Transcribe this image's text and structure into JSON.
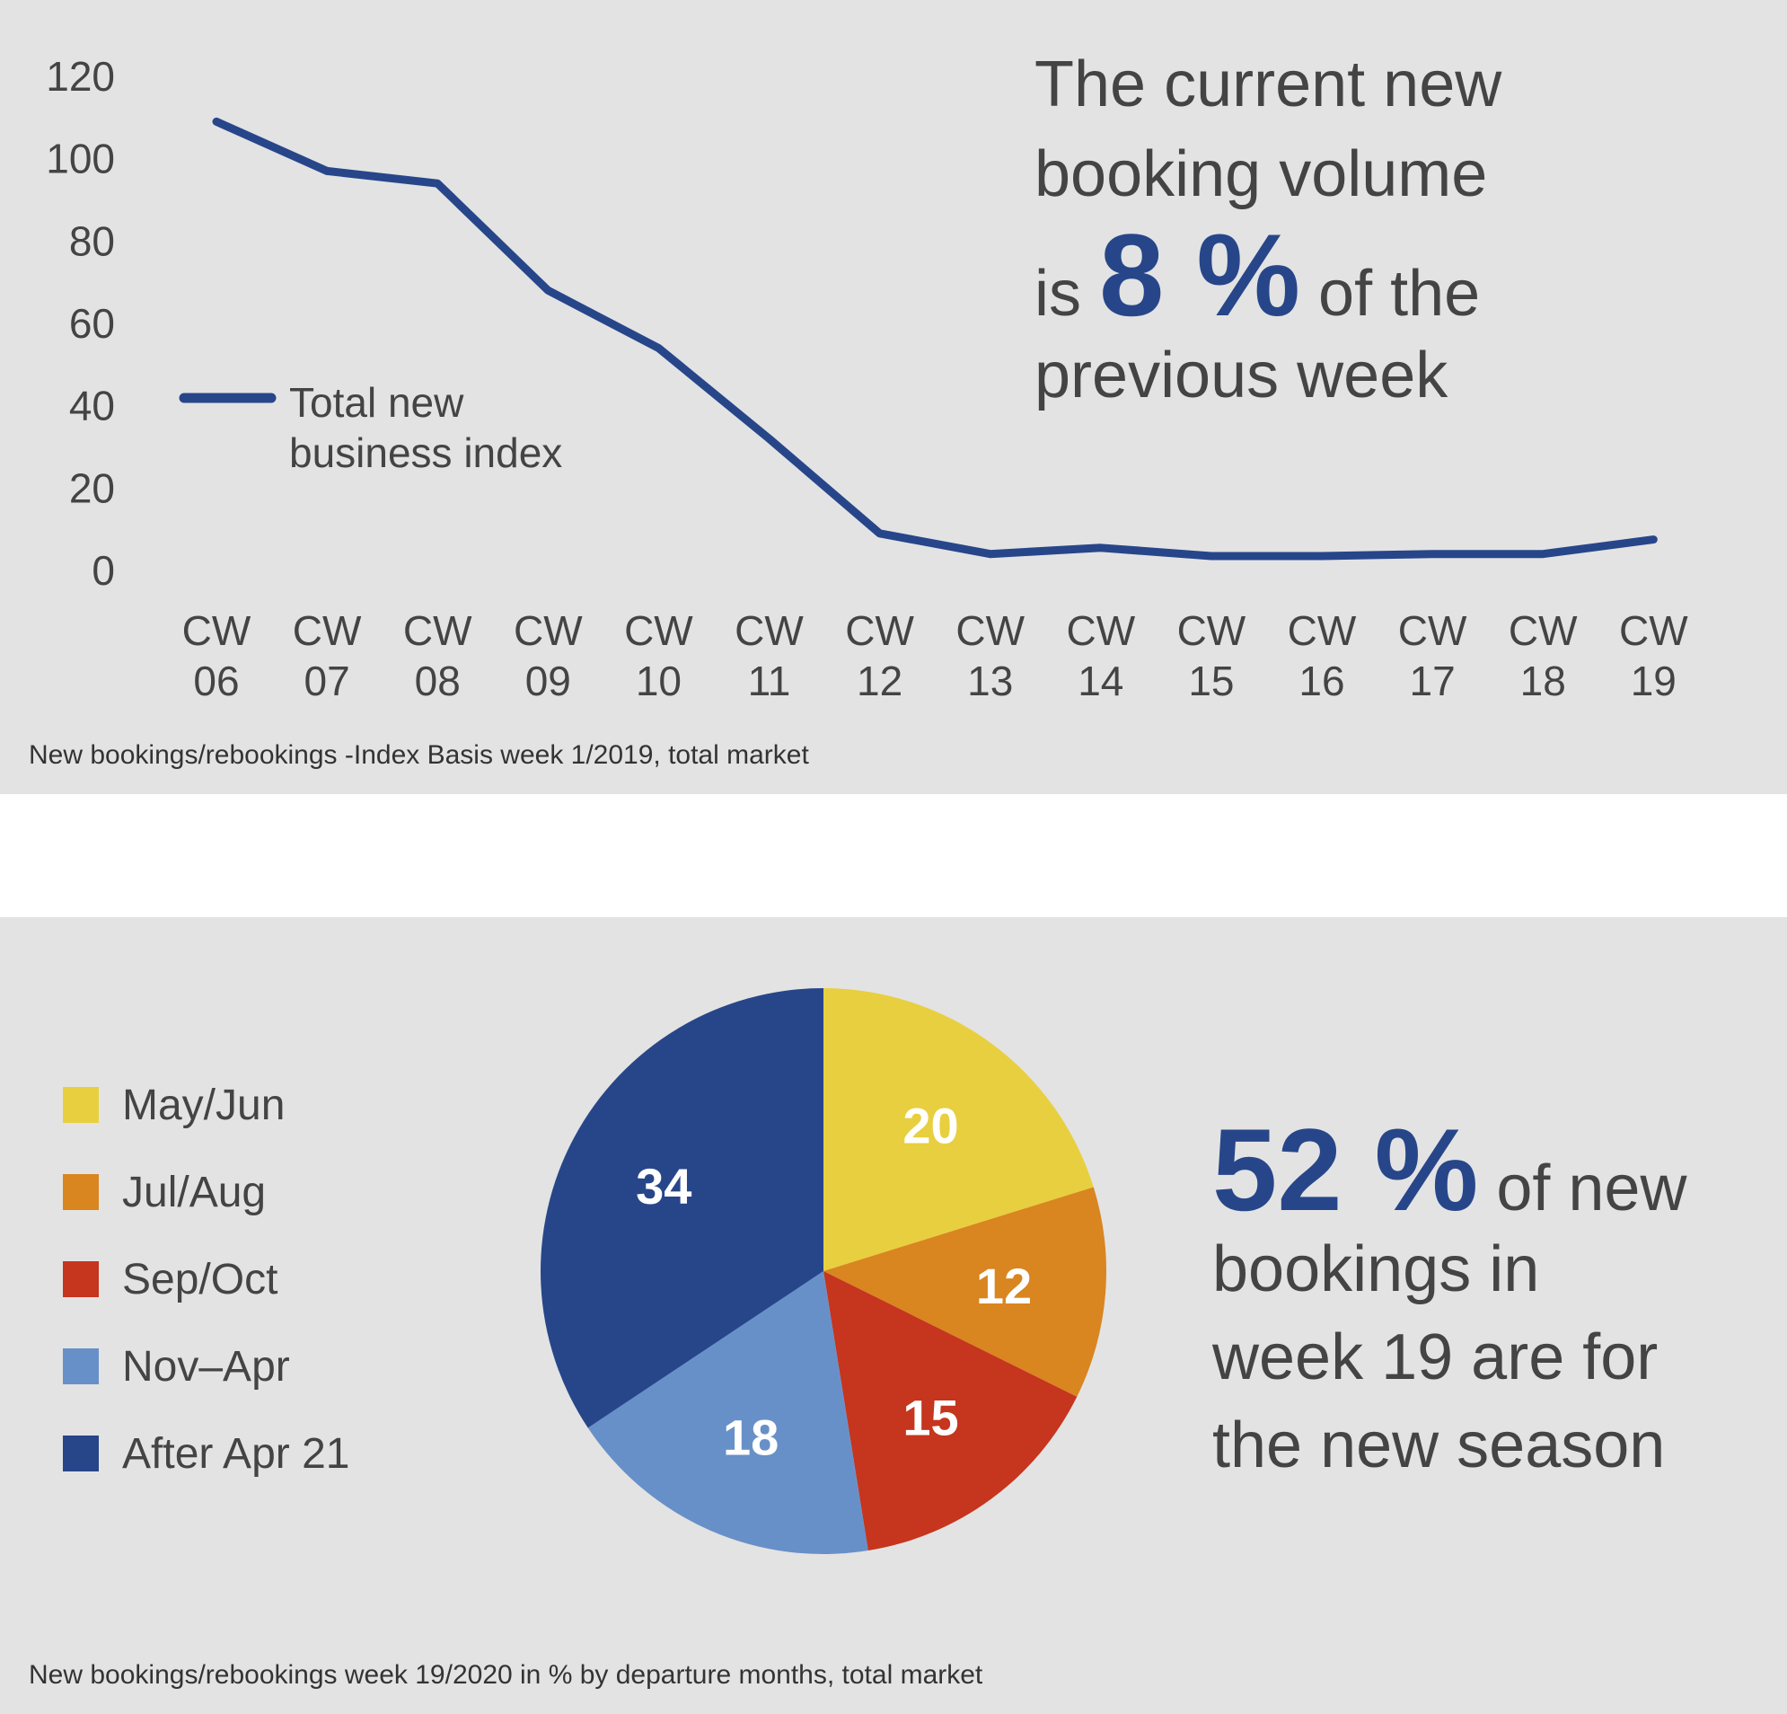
{
  "chart_data": [
    {
      "type": "line",
      "categories": [
        "CW 06",
        "CW 07",
        "CW 08",
        "CW 09",
        "CW 10",
        "CW 11",
        "CW 12",
        "CW 13",
        "CW 14",
        "CW 15",
        "CW 16",
        "CW 17",
        "CW 18",
        "CW 19"
      ],
      "category_lines": [
        [
          "CW",
          "06"
        ],
        [
          "CW",
          "07"
        ],
        [
          "CW",
          "08"
        ],
        [
          "CW",
          "09"
        ],
        [
          "CW",
          "10"
        ],
        [
          "CW",
          "11"
        ],
        [
          "CW",
          "12"
        ],
        [
          "CW",
          "13"
        ],
        [
          "CW",
          "14"
        ],
        [
          "CW",
          "15"
        ],
        [
          "CW",
          "16"
        ],
        [
          "CW",
          "17"
        ],
        [
          "CW",
          "18"
        ],
        [
          "CW",
          "19"
        ]
      ],
      "series": [
        {
          "name": "Total new business index",
          "name_lines": [
            "Total new",
            "business index"
          ],
          "values": [
            109,
            97,
            94,
            68,
            54,
            32,
            9,
            4,
            5.5,
            3.5,
            3.5,
            4,
            4,
            7.5
          ],
          "color": "#27468a"
        }
      ],
      "ylim": [
        0,
        120
      ],
      "yticks": [
        0,
        20,
        40,
        60,
        80,
        100,
        120
      ],
      "grid": false,
      "legend": "left",
      "note": "New bookings/rebookings -Index Basis week 1/2019, total market",
      "headline": {
        "line1": "The current new",
        "line2": "booking volume",
        "pre": "is",
        "value": "8 %",
        "post": "of the",
        "line4": "previous week"
      }
    },
    {
      "type": "pie",
      "labels": [
        "May/Jun",
        "Jul/Aug",
        "Sep/Oct",
        "Nov–Apr",
        "After Apr 21"
      ],
      "values": [
        20,
        12,
        15,
        18,
        34
      ],
      "colors": [
        "#e8cf3f",
        "#d98520",
        "#c6351d",
        "#6890c8",
        "#27468a"
      ],
      "legend": "left",
      "note": "New bookings/rebookings week 19/2020 in % by departure months, total market",
      "headline": {
        "value": "52 %",
        "post": "of new",
        "line2": "bookings in",
        "line3": "week 19 are for",
        "line4": "the new season"
      }
    }
  ]
}
